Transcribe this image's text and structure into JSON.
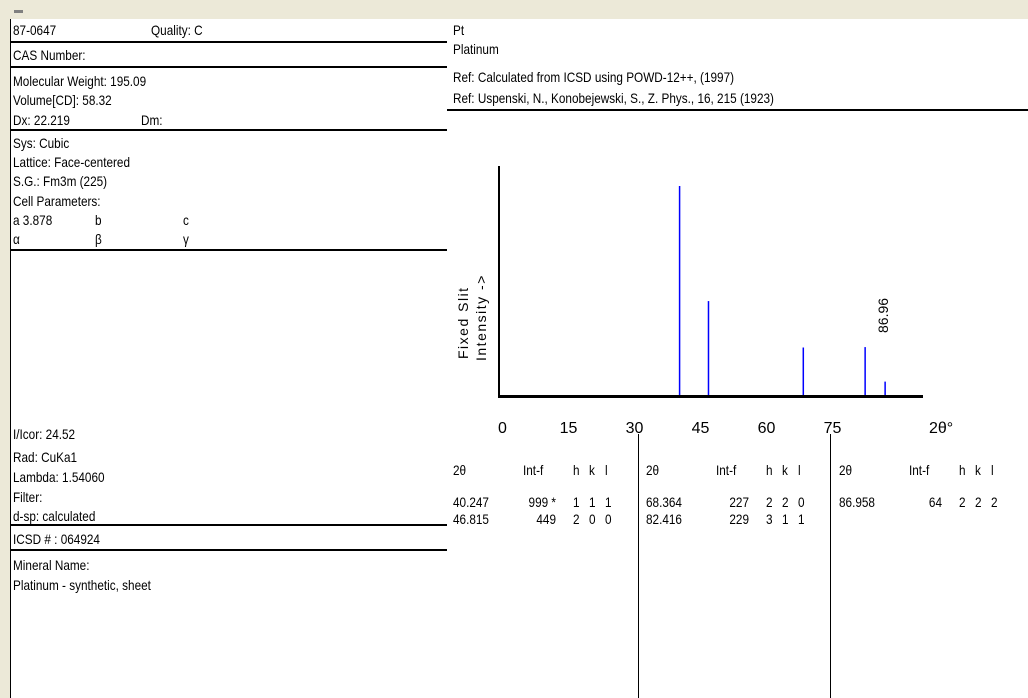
{
  "card": {
    "pdf_number": "87-0647",
    "quality": "Quality: C",
    "cas": "CAS Number:",
    "mw": "Molecular Weight:  195.09",
    "volume": "Volume[CD]:   58.32",
    "dx": "Dx: 22.219",
    "dm": "Dm:",
    "sys": "Sys: Cubic",
    "lattice": "Lattice: Face-centered",
    "sg": "S.G.: Fm3m (225)",
    "cell": "Cell Parameters:",
    "a": "a  3.878",
    "b": "b",
    "c": "c",
    "alpha": "α",
    "beta": "β",
    "gamma": "γ",
    "icor": "I/Icor:  24.52",
    "rad": "Rad: CuKa1",
    "lambda": "Lambda: 1.54060",
    "filter": "Filter:",
    "dsp": "d-sp: calculated",
    "icsd": "ICSD # : 064924",
    "mineral_label": "Mineral Name:",
    "mineral_value": "Platinum - synthetic, sheet"
  },
  "header": {
    "formula": "Pt",
    "name": "Platinum",
    "ref1": "Ref:  Calculated from ICSD using POWD-12++, (1997)",
    "ref2": "Ref: Uspenski, N., Konobejewski, S., Z. Phys., 16, 215 (1923)"
  },
  "chart_data": {
    "type": "bar",
    "ylabel_line1": "Fixed  Slit",
    "ylabel_line2": "Intensity  ->",
    "xlabel": "2θ°",
    "xlim": [
      0,
      94
    ],
    "x_ticks": [
      "0",
      "15",
      "30",
      "45",
      "60",
      "75"
    ],
    "peaks": [
      {
        "x": 40.247,
        "y": 999
      },
      {
        "x": 46.815,
        "y": 449
      },
      {
        "x": 68.364,
        "y": 227
      },
      {
        "x": 82.416,
        "y": 229
      },
      {
        "x": 86.958,
        "y": 64
      }
    ],
    "annotation": "86.96",
    "bar_color": "#0000ff"
  },
  "table": {
    "headers": [
      "2θ",
      "Int-f",
      "h",
      "k",
      "l"
    ],
    "columns": [
      {
        "rows": [
          [
            "40.247",
            "999 *",
            "1",
            "1",
            "1"
          ],
          [
            "46.815",
            "449",
            "2",
            "0",
            "0"
          ]
        ]
      },
      {
        "rows": [
          [
            "68.364",
            "227",
            "2",
            "2",
            "0"
          ],
          [
            "82.416",
            "229",
            "3",
            "1",
            "1"
          ]
        ]
      },
      {
        "rows": [
          [
            "86.958",
            "64",
            "2",
            "2",
            "2"
          ]
        ]
      }
    ]
  }
}
